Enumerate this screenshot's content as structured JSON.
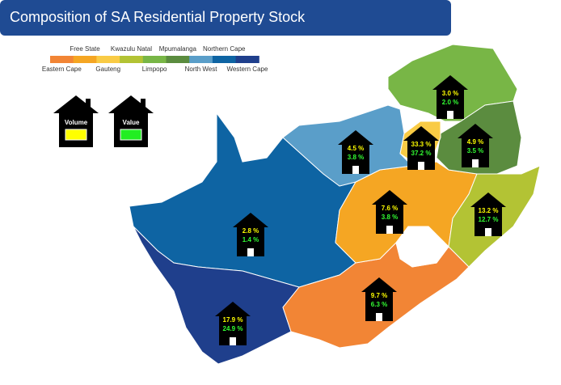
{
  "header": {
    "title": "Composition of SA Residential Property Stock"
  },
  "legend": {
    "items": [
      {
        "name": "Eastern Cape",
        "color": "#f28535"
      },
      {
        "name": "Free State",
        "color": "#f5a623"
      },
      {
        "name": "Gauteng",
        "color": "#f9cb45"
      },
      {
        "name": "Kwazulu Natal",
        "color": "#b3c334"
      },
      {
        "name": "Limpopo",
        "color": "#78b646"
      },
      {
        "name": "Mpumalanga",
        "color": "#5b8c3f"
      },
      {
        "name": "North West",
        "color": "#5a9ec9"
      },
      {
        "name": "Northern Cape",
        "color": "#0e64a3"
      },
      {
        "name": "Western Cape",
        "color": "#1f3f8c"
      }
    ]
  },
  "key": {
    "volume": "Volume",
    "value": "Value"
  },
  "regions": [
    {
      "volume": "3.0 %",
      "value": "2.0 %"
    },
    {
      "volume": "4.9 %",
      "value": "3.5 %"
    },
    {
      "volume": "33.3 %",
      "value": "37.2 %"
    },
    {
      "volume": "4.5 %",
      "value": "3.8 %"
    },
    {
      "volume": "13.2 %",
      "value": "12.7 %"
    },
    {
      "volume": "7.6 %",
      "value": "3.8 %"
    },
    {
      "volume": "2.8 %",
      "value": "1.4 %"
    },
    {
      "volume": "9.7 %",
      "value": "6.3 %"
    },
    {
      "volume": "17.9 %",
      "value": "24.9 %"
    }
  ]
}
